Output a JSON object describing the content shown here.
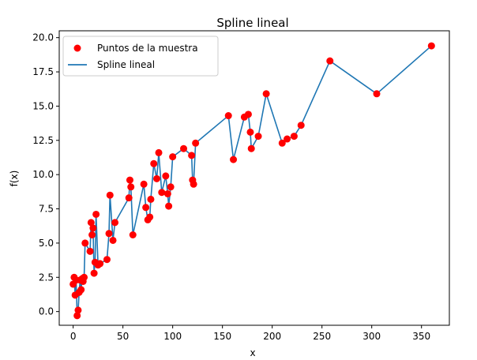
{
  "chart_data": {
    "type": "scatter",
    "title": "Spline lineal",
    "xlabel": "x",
    "ylabel": "f(x)",
    "xlim": [
      -14,
      378
    ],
    "ylim": [
      -1.0,
      20.5
    ],
    "xticks": [
      0,
      50,
      100,
      150,
      200,
      250,
      300,
      350
    ],
    "yticks": [
      0.0,
      2.5,
      5.0,
      7.5,
      10.0,
      12.5,
      15.0,
      17.5,
      20.0
    ],
    "xtick_labels": [
      "0",
      "50",
      "100",
      "150",
      "200",
      "250",
      "300",
      "350"
    ],
    "ytick_labels": [
      "0.0",
      "2.5",
      "5.0",
      "7.5",
      "10.0",
      "12.5",
      "15.0",
      "17.5",
      "20.0"
    ],
    "grid": false,
    "legend_position": "top-left",
    "colors": {
      "points": "#ff0000",
      "line": "#1f77b4"
    },
    "series": [
      {
        "name": "Puntos de la muestra",
        "kind": "scatter",
        "x": [
          0,
          1,
          2,
          3,
          4,
          5,
          6,
          7,
          8,
          9,
          10,
          11,
          12,
          17,
          18,
          19,
          20,
          21,
          22,
          23,
          25,
          27,
          34,
          36,
          37,
          40,
          42,
          56,
          57,
          58,
          60,
          71,
          73,
          75,
          77,
          78,
          81,
          84,
          86,
          89,
          93,
          95,
          96,
          98,
          100,
          111,
          119,
          120,
          121,
          123,
          156,
          161,
          172,
          176,
          178,
          179,
          186,
          194,
          210,
          215,
          222,
          229,
          258,
          305,
          360
        ],
        "y": [
          2.0,
          2.5,
          1.2,
          2.3,
          -0.3,
          0.1,
          1.4,
          2.3,
          1.6,
          2.4,
          2.2,
          2.5,
          5.0,
          4.4,
          6.5,
          5.6,
          6.1,
          2.8,
          3.6,
          7.1,
          3.4,
          3.5,
          3.8,
          5.7,
          8.5,
          5.2,
          6.5,
          8.3,
          9.6,
          9.1,
          5.6,
          9.3,
          7.6,
          6.7,
          6.9,
          8.2,
          10.8,
          9.7,
          11.6,
          8.7,
          9.9,
          8.6,
          7.7,
          9.1,
          11.3,
          11.9,
          11.4,
          9.6,
          9.3,
          12.3,
          14.3,
          11.1,
          14.2,
          14.4,
          13.1,
          11.9,
          12.8,
          15.9,
          12.3,
          12.6,
          12.8,
          13.6,
          18.3,
          15.9,
          19.4
        ]
      },
      {
        "name": "Spline lineal",
        "kind": "line",
        "x": [
          0,
          1,
          2,
          3,
          4,
          5,
          6,
          7,
          8,
          9,
          10,
          11,
          12,
          17,
          18,
          19,
          20,
          21,
          22,
          23,
          25,
          27,
          34,
          36,
          37,
          40,
          42,
          56,
          57,
          58,
          60,
          71,
          73,
          75,
          77,
          78,
          81,
          84,
          86,
          89,
          93,
          95,
          96,
          98,
          100,
          111,
          119,
          120,
          121,
          123,
          156,
          161,
          172,
          176,
          178,
          179,
          186,
          194,
          210,
          215,
          222,
          229,
          258,
          305,
          360
        ],
        "y": [
          2.0,
          2.5,
          1.2,
          2.3,
          -0.3,
          0.1,
          1.4,
          2.3,
          1.6,
          2.4,
          2.2,
          2.5,
          5.0,
          4.4,
          6.5,
          5.6,
          6.1,
          2.8,
          3.6,
          7.1,
          3.4,
          3.5,
          3.8,
          5.7,
          8.5,
          5.2,
          6.5,
          8.3,
          9.6,
          9.1,
          5.6,
          9.3,
          7.6,
          6.7,
          6.9,
          8.2,
          10.8,
          9.7,
          11.6,
          8.7,
          9.9,
          8.6,
          7.7,
          9.1,
          11.3,
          11.9,
          11.4,
          9.6,
          9.3,
          12.3,
          14.3,
          11.1,
          14.2,
          14.4,
          13.1,
          11.9,
          12.8,
          15.9,
          12.3,
          12.6,
          12.8,
          13.6,
          18.3,
          15.9,
          19.4
        ]
      }
    ]
  }
}
